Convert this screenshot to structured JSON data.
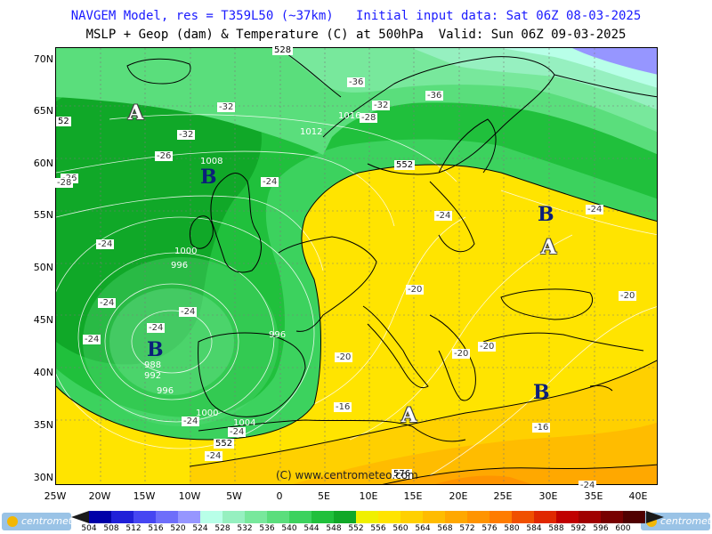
{
  "header": {
    "line1": "NAVGEM Model, res = T359L50 (~37km)   Initial input data: Sat 06Z 08-03-2025",
    "line2": "MSLP + Geop (dam) & Temperature (C) at 500hPa  Valid: Sun 06Z 09-03-2025"
  },
  "axes": {
    "lat": [
      "70N",
      "65N",
      "60N",
      "55N",
      "50N",
      "45N",
      "40N",
      "35N",
      "30N"
    ],
    "lon": [
      "25W",
      "20W",
      "15W",
      "10W",
      "5W",
      "0",
      "5E",
      "10E",
      "15E",
      "20E",
      "25E",
      "30E",
      "35E",
      "40E"
    ]
  },
  "pressure_centers": [
    {
      "type": "A",
      "name": "high-north-atlantic"
    },
    {
      "type": "B",
      "name": "low-scotland"
    },
    {
      "type": "B",
      "name": "low-iberia-west"
    },
    {
      "type": "B",
      "name": "low-russia"
    },
    {
      "type": "A",
      "name": "high-ukraine"
    },
    {
      "type": "B",
      "name": "low-turkey"
    },
    {
      "type": "A",
      "name": "high-libya"
    }
  ],
  "temperature_labels": [
    "-36",
    "-36",
    "-32",
    "-32",
    "-32",
    "-28",
    "-26",
    "-26",
    "-24",
    "-24",
    "-24",
    "-24",
    "-24",
    "-24",
    "-24",
    "-24",
    "-24",
    "-20",
    "-20",
    "-20",
    "-20",
    "-20",
    "-16",
    "-16",
    "-24",
    "-24",
    "-28",
    "-24"
  ],
  "isobar_labels": [
    "1012",
    "1016",
    "1008",
    "1000",
    "996",
    "996",
    "988",
    "992",
    "996",
    "1000",
    "1004"
  ],
  "geop_labels": [
    "528",
    "552",
    "552",
    "576",
    "52"
  ],
  "copyright": "(C) www.centrometeo.com",
  "legend": {
    "values": [
      "504",
      "508",
      "512",
      "516",
      "520",
      "524",
      "528",
      "532",
      "536",
      "540",
      "544",
      "548",
      "552",
      "556",
      "560",
      "564",
      "568",
      "572",
      "576",
      "580",
      "584",
      "588",
      "592",
      "596",
      "600"
    ],
    "colors": [
      "#0000a8",
      "#2020d8",
      "#4646f2",
      "#6e6efa",
      "#9696ff",
      "#b8ffe8",
      "#96f0c0",
      "#78e89c",
      "#5ade7c",
      "#3cd25e",
      "#20c03c",
      "#10a828",
      "#f0f000",
      "#ffe400",
      "#ffd000",
      "#ffbc00",
      "#ffa800",
      "#ff9400",
      "#ff7c00",
      "#f05000",
      "#e02800",
      "#c00000",
      "#a00000",
      "#780000",
      "#500000"
    ],
    "brand": "centrometeo"
  }
}
